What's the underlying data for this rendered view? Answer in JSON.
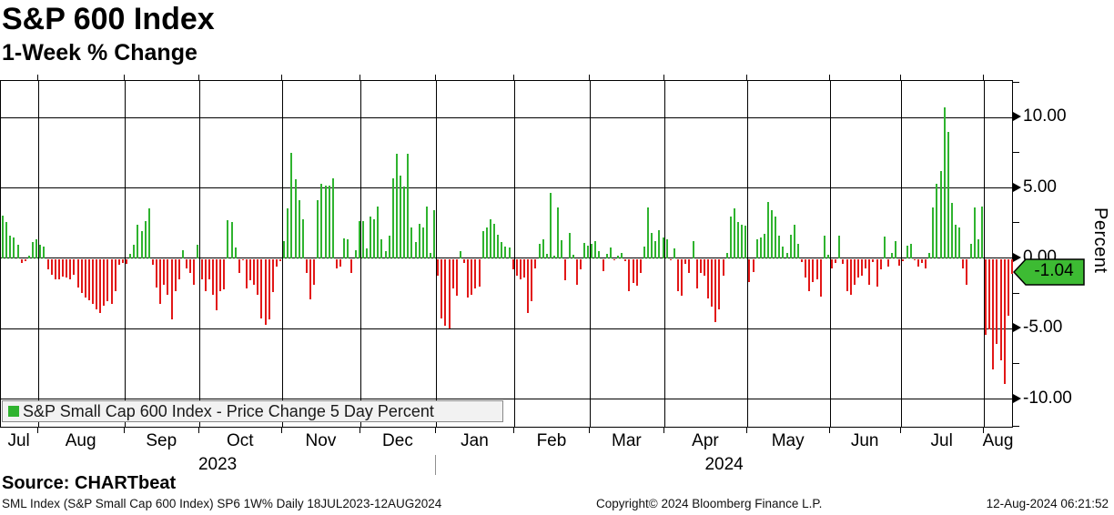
{
  "header": {
    "title": "S&P 600 Index",
    "subtitle": "1-Week % Change"
  },
  "chart_data": {
    "type": "bar",
    "title": "S&P 600 Index",
    "subtitle": "1-Week % Change",
    "ylabel": "Percent",
    "ylim": [
      -12.1,
      12.6
    ],
    "grid": true,
    "y_major_ticks": [
      10.0,
      5.0,
      0.0,
      -5.0,
      -10.0
    ],
    "y_minor_ticks": [
      12.5,
      7.5,
      2.5,
      -2.5,
      -7.5,
      -12.0
    ],
    "last_value": -1.04,
    "last_value_label": "-1.04",
    "colors": {
      "positive": "#2fb32f",
      "negative": "#e21717",
      "badge": "#3dbb33"
    },
    "legend": {
      "label": "S&P Small Cap 600 Index - Price Change 5 Day Percent",
      "swatch_color": "#2fb32f",
      "position": "bottom-left"
    },
    "years": [
      {
        "label": "2023",
        "month_span": 6
      },
      {
        "label": "2024",
        "month_span": 8
      }
    ],
    "months": [
      {
        "label": "Jul",
        "values": [
          3.0,
          2.6,
          1.6,
          1.5,
          0.95,
          -0.3,
          -0.15,
          0.2,
          1.15,
          1.35
        ]
      },
      {
        "label": "Aug",
        "values": [
          0.95,
          0.8,
          -0.75,
          -1.1,
          -1.4,
          -1.4,
          -1.25,
          -1.3,
          -1.4,
          -1.1,
          -2.0,
          -2.4,
          -2.7,
          -2.9,
          -3.2,
          -3.55,
          -3.85,
          -3.3,
          -3.0,
          -3.15,
          -2.25,
          -0.4,
          -0.3
        ]
      },
      {
        "label": "Sep",
        "values": [
          -0.35,
          0.3,
          0.95,
          2.4,
          1.9,
          2.65,
          3.55,
          -0.4,
          -2.0,
          -3.15,
          -1.85,
          -2.5,
          -4.25,
          -2.25,
          -1.4,
          0.6,
          -0.65,
          -1.0,
          -1.8,
          0.95
        ]
      },
      {
        "label": "Oct",
        "values": [
          -1.4,
          -2.3,
          -1.4,
          -2.5,
          -3.65,
          -2.3,
          -2.15,
          2.7,
          2.55,
          0.75,
          -1.0,
          -0.1,
          -2.05,
          -1.5,
          -1.85,
          -2.5,
          -4.2,
          -4.65,
          -4.3,
          -2.35,
          -0.55,
          -0.15
        ]
      },
      {
        "label": "Nov",
        "values": [
          1.2,
          3.55,
          7.5,
          5.6,
          4.1,
          2.75,
          -1.0,
          -2.85,
          -1.85,
          4.1,
          5.3,
          5.15,
          5.15,
          5.65,
          -0.65,
          -0.5,
          1.4,
          1.35,
          -0.95,
          0.6,
          2.65
        ]
      },
      {
        "label": "Dec",
        "values": [
          2.65,
          0.7,
          2.95,
          2.75,
          3.7,
          1.35,
          0.5,
          1.6,
          5.65,
          7.4,
          5.9,
          5.1,
          7.4,
          2.2,
          1.15,
          2.45,
          2.2,
          3.7,
          0.4,
          3.4
        ]
      },
      {
        "label": "Jan",
        "values": [
          -1.2,
          -4.2,
          -4.7,
          -4.95,
          -2.05,
          -2.6,
          0.5,
          -0.25,
          -2.7,
          -2.5,
          -2.05,
          -1.95,
          1.9,
          2.2,
          2.75,
          2.45,
          1.7,
          1.15,
          0.85,
          0.75,
          -0.75
        ]
      },
      {
        "label": "Feb",
        "values": [
          -1.2,
          -1.4,
          -1.3,
          -3.85,
          -3.0,
          -0.65,
          1.05,
          1.35,
          0.3,
          4.65,
          0.2,
          3.6,
          1.3,
          -1.5,
          1.8,
          0.25,
          -1.8,
          -0.75,
          1.1,
          0.9
        ]
      },
      {
        "label": "Mar",
        "values": [
          1.0,
          1.25,
          0.5,
          -0.85,
          0.3,
          0.75,
          -0.1,
          0.2,
          0.4,
          -0.15,
          -2.25,
          -1.7,
          -1.9,
          -1.0,
          0.8,
          3.6,
          1.8,
          1.2,
          2.0,
          1.5
        ]
      },
      {
        "label": "Apr",
        "values": [
          1.35,
          -0.1,
          0.7,
          -2.25,
          -2.6,
          -0.35,
          -1.0,
          1.25,
          -2.05,
          -1.0,
          -1.2,
          -2.8,
          -3.35,
          -4.5,
          -3.55,
          -1.15,
          0.4,
          2.95,
          3.55,
          2.55,
          2.4,
          2.35
        ]
      },
      {
        "label": "May",
        "values": [
          -1.6,
          -0.9,
          1.35,
          1.5,
          1.75,
          4.0,
          3.4,
          2.95,
          1.6,
          0.85,
          0.4,
          1.7,
          2.4,
          1.05,
          -0.2,
          -1.3,
          -2.25,
          -1.6,
          -1.4,
          -2.65,
          1.6,
          0.25
        ]
      },
      {
        "label": "Jun",
        "values": [
          -0.65,
          -0.25,
          1.6,
          -0.35,
          -2.25,
          -2.5,
          -1.85,
          -1.3,
          -1.15,
          -0.65,
          -1.85,
          -0.2,
          -1.95,
          -0.75,
          1.55,
          -0.5,
          0.35,
          1.2,
          -0.45
        ]
      },
      {
        "label": "Jul",
        "values": [
          -0.15,
          0.9,
          1.0,
          -0.1,
          -0.5,
          -0.25,
          -0.65,
          0.35,
          3.6,
          5.3,
          6.2,
          10.7,
          9.0,
          3.95,
          2.4,
          2.2,
          -0.65,
          -1.8,
          1.05,
          3.6,
          1.35,
          3.7
        ]
      },
      {
        "label": "Aug",
        "values": [
          -5.4,
          -5.0,
          -7.85,
          -6.05,
          -7.2,
          -8.85,
          -4.05,
          -1.04
        ]
      }
    ]
  },
  "footer": {
    "source": "Source: CHARTbeat",
    "meta_left": "SML Index (S&P Small Cap 600 Index) SP6 1W%  Daily 18JUL2023-12AUG2024",
    "meta_center": "Copyright© 2024 Bloomberg Finance L.P.",
    "meta_right": "12-Aug-2024 06:21:52"
  }
}
